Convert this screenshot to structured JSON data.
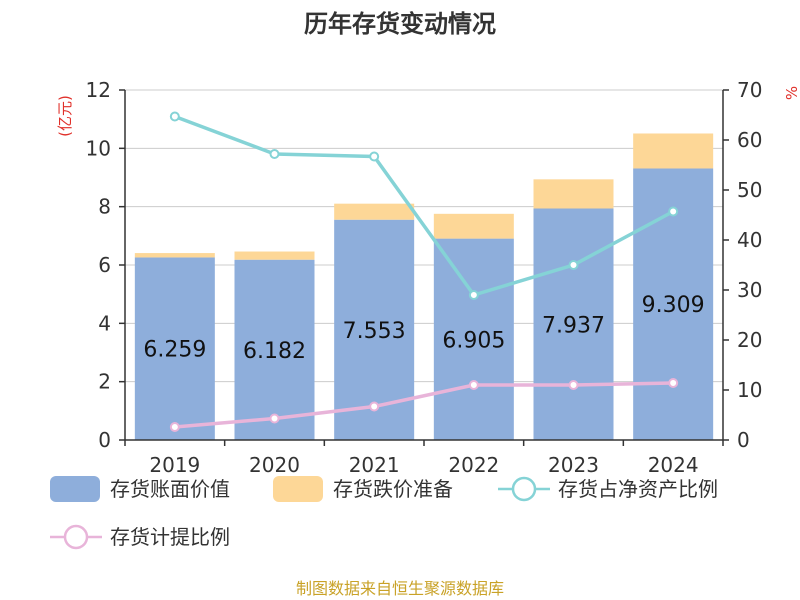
{
  "title": "历年存货变动情况",
  "source": "制图数据来自恒生聚源数据库",
  "left_unit": "(亿元)",
  "right_unit": "%",
  "colors": {
    "book_value": "#8eaedb",
    "impairment": "#fdd797",
    "net_asset_ratio": "#85d3d6",
    "provision_ratio": "#e8b4d9",
    "axis": "#333333",
    "grid": "#cccccc"
  },
  "chart_data": {
    "type": "bar",
    "categories": [
      "2019",
      "2020",
      "2021",
      "2022",
      "2023",
      "2024"
    ],
    "stacked": true,
    "series": [
      {
        "name": "存货账面价值",
        "type": "bar",
        "axis": "left",
        "values": [
          6.259,
          6.182,
          7.553,
          6.905,
          7.937,
          9.309
        ]
      },
      {
        "name": "存货跌价准备",
        "type": "bar",
        "axis": "left",
        "values": [
          0.15,
          0.28,
          0.55,
          0.85,
          1.0,
          1.2
        ]
      },
      {
        "name": "存货占净资产比例",
        "type": "line",
        "axis": "right",
        "values": [
          64.7,
          57.2,
          56.7,
          29.0,
          35.0,
          45.7
        ]
      },
      {
        "name": "存货计提比例",
        "type": "line",
        "axis": "right",
        "values": [
          2.6,
          4.3,
          6.7,
          11.0,
          11.0,
          11.4
        ]
      }
    ],
    "left_axis": {
      "min": 0,
      "max": 12,
      "ticks": [
        0,
        2,
        4,
        6,
        8,
        10,
        12
      ]
    },
    "right_axis": {
      "min": 0,
      "max": 70,
      "ticks": [
        0,
        10,
        20,
        30,
        40,
        50,
        60,
        70
      ]
    },
    "grid": true,
    "legend_position": "bottom"
  }
}
